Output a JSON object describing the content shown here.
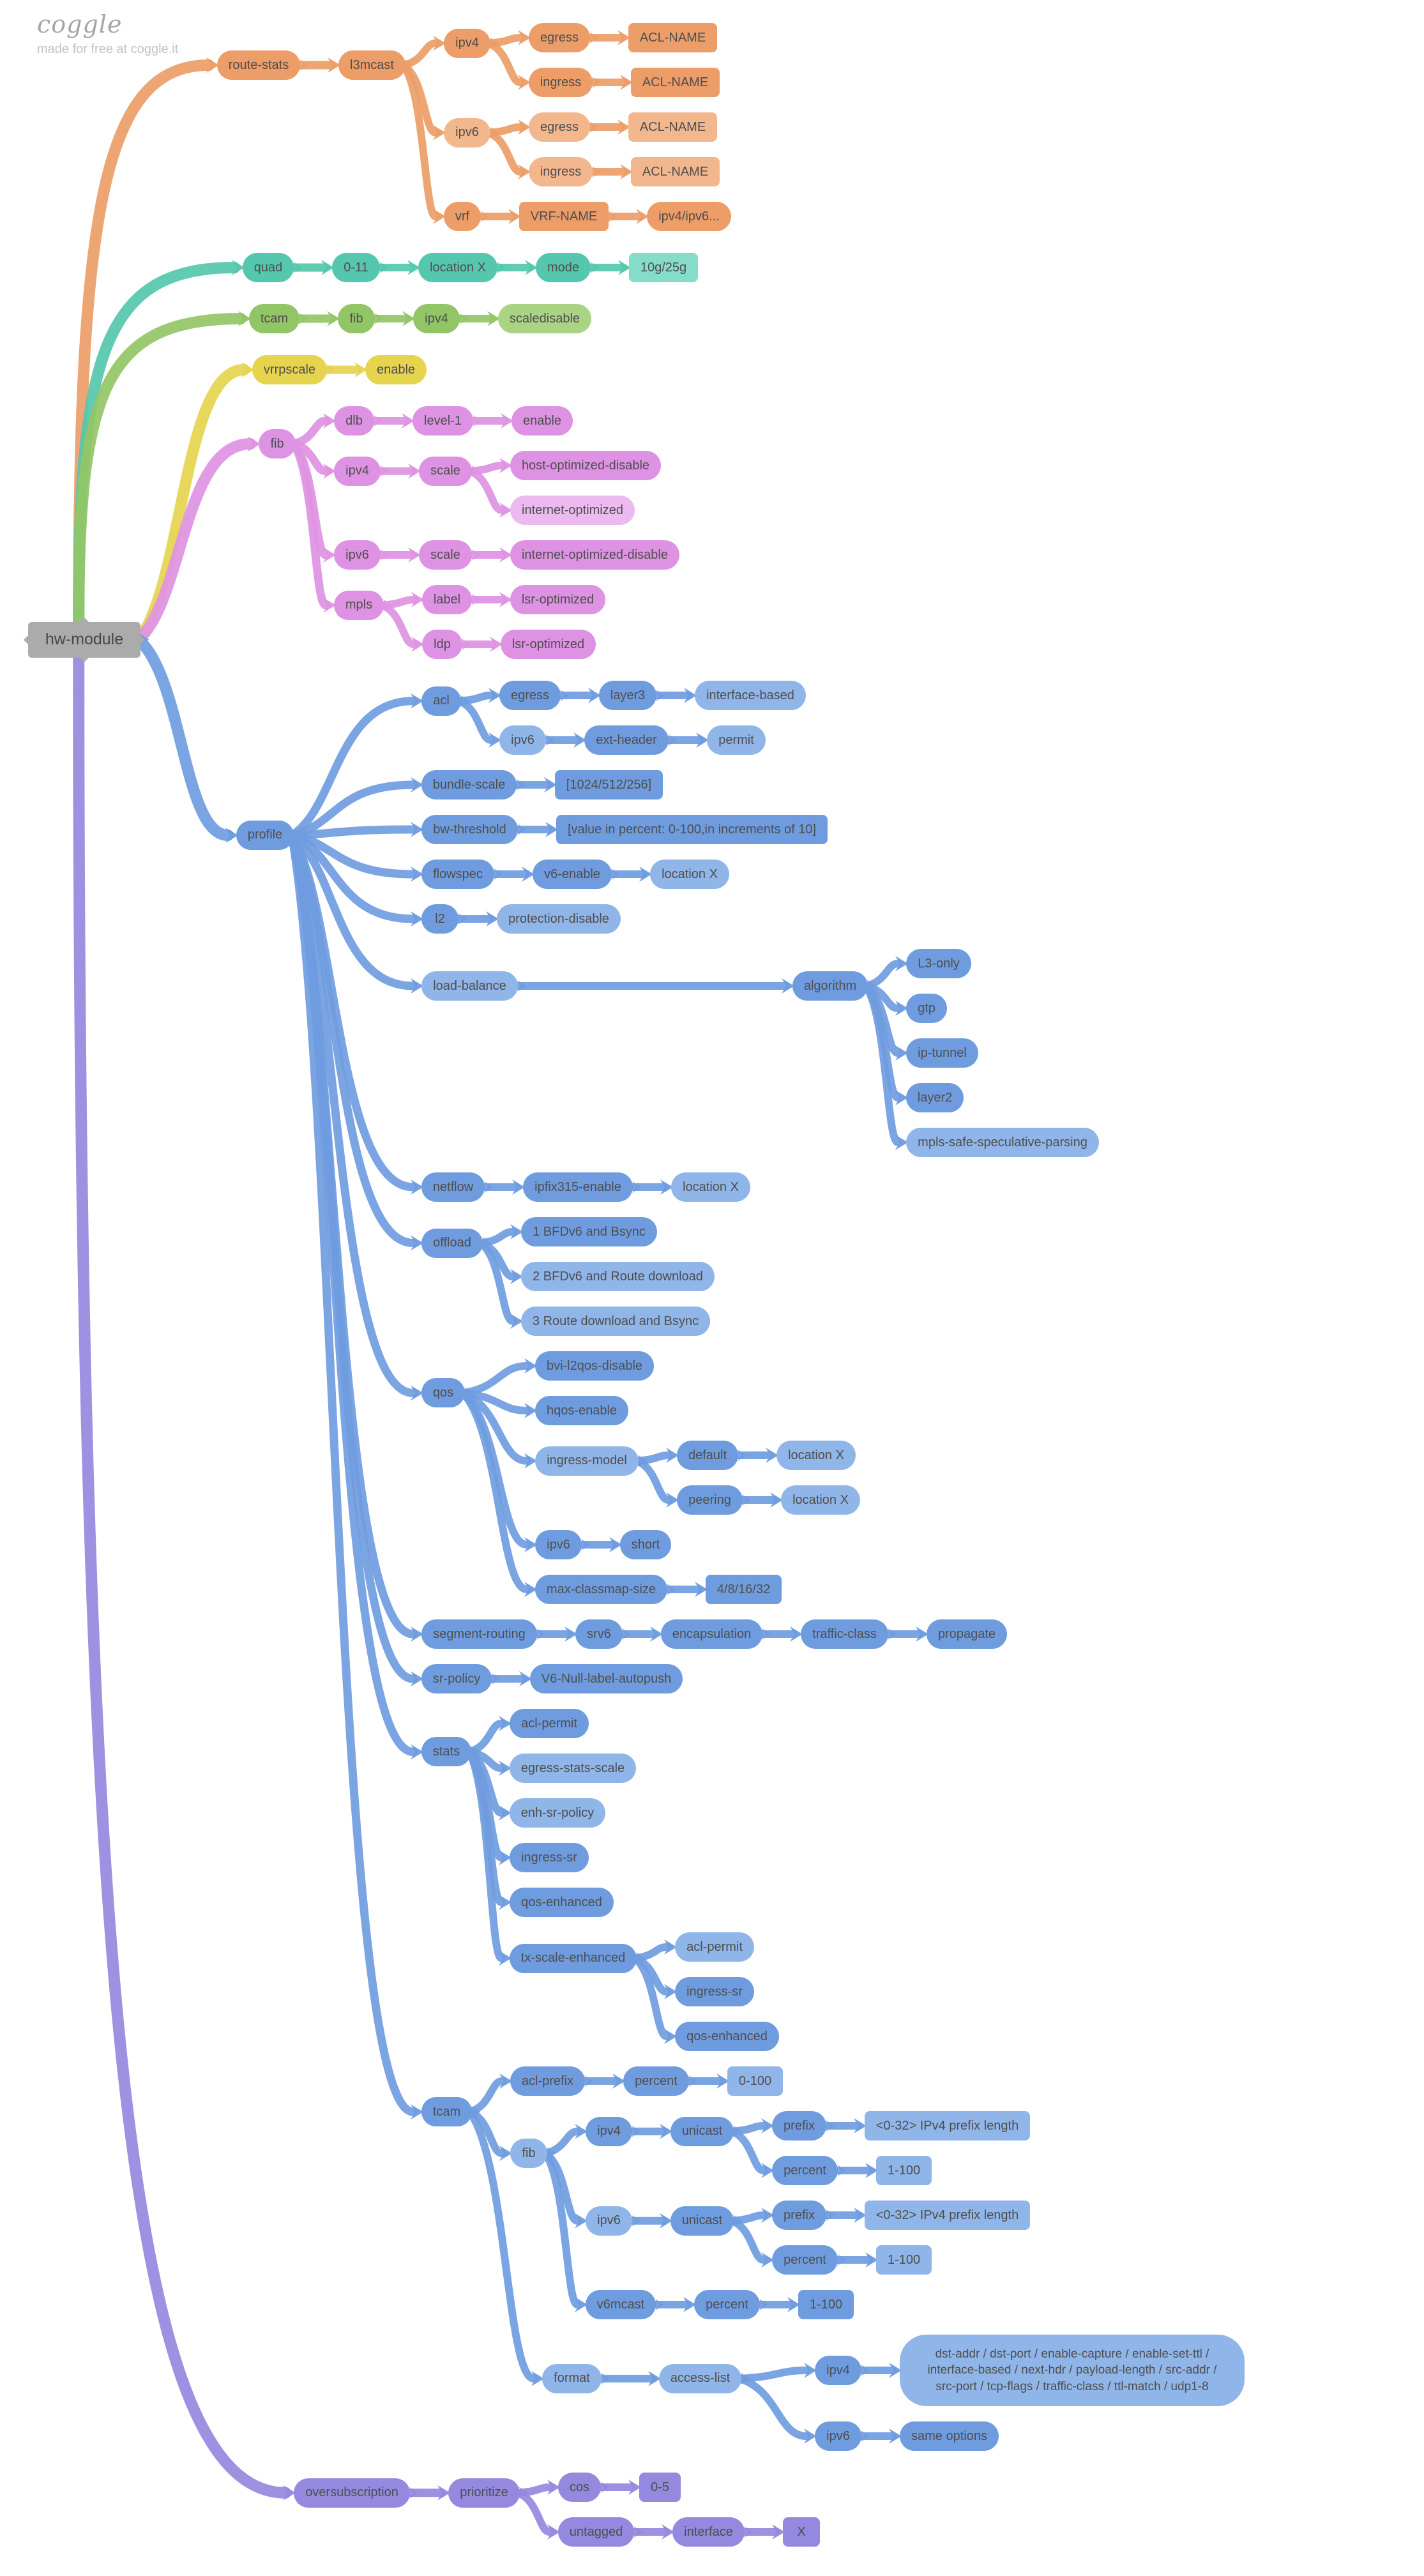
{
  "watermark": {
    "logo": "coggle",
    "tagline": "made for free at coggle.it"
  },
  "colors": {
    "gray": {
      "dark": "#ababab",
      "light": "#bdbdbd"
    },
    "orange": {
      "dark": "#ec9d68",
      "light": "#f3b78e"
    },
    "teal": {
      "dark": "#55c7ae",
      "light": "#85dcc8"
    },
    "green": {
      "dark": "#92c566",
      "light": "#aad484"
    },
    "yellow": {
      "dark": "#e6d44f",
      "light": "#eee183"
    },
    "violet": {
      "dark": "#de92e3",
      "light": "#ecb9f1"
    },
    "blue": {
      "dark": "#6f9cdf",
      "light": "#90b5e8"
    },
    "purple": {
      "dark": "#9489de",
      "light": "#aea6e9"
    }
  },
  "tree": {
    "label": "hw-module",
    "color": "gray",
    "children": [
      {
        "label": "route-stats",
        "color": "orange",
        "gap": 120,
        "children": [
          {
            "label": "l3mcast",
            "children": [
              {
                "label": "ipv4",
                "children": [
                  {
                    "label": "egress",
                    "children": [
                      {
                        "label": "ACL-NAME",
                        "shape": "rect"
                      }
                    ]
                  },
                  {
                    "label": "ingress",
                    "children": [
                      {
                        "label": "ACL-NAME",
                        "shape": "rect"
                      }
                    ]
                  }
                ]
              },
              {
                "label": "ipv6",
                "tone": 1,
                "children": [
                  {
                    "label": "egress",
                    "tone": 1,
                    "children": [
                      {
                        "label": "ACL-NAME",
                        "shape": "rect",
                        "tone": 1
                      }
                    ]
                  },
                  {
                    "label": "ingress",
                    "tone": 1,
                    "children": [
                      {
                        "label": "ACL-NAME",
                        "shape": "rect",
                        "tone": 1
                      }
                    ]
                  }
                ]
              },
              {
                "label": "vrf",
                "children": [
                  {
                    "label": "VRF-NAME",
                    "shape": "rect",
                    "children": [
                      {
                        "label": "ipv4/ipv6..."
                      }
                    ]
                  }
                ]
              }
            ]
          }
        ]
      },
      {
        "label": "quad",
        "color": "teal",
        "gap": 160,
        "children": [
          {
            "label": "0-11",
            "children": [
              {
                "label": "location X",
                "children": [
                  {
                    "label": "mode",
                    "children": [
                      {
                        "label": "10g/25g",
                        "shape": "rect",
                        "tone": 1
                      }
                    ]
                  }
                ]
              }
            ]
          }
        ]
      },
      {
        "label": "tcam",
        "color": "green",
        "gap": 170,
        "children": [
          {
            "label": "fib",
            "children": [
              {
                "label": "ipv4",
                "children": [
                  {
                    "label": "scaledisable",
                    "tone": 1
                  }
                ]
              }
            ]
          }
        ]
      },
      {
        "label": "vrrpscale",
        "color": "yellow",
        "gap": 175,
        "children": [
          {
            "label": "enable"
          }
        ]
      },
      {
        "label": "fib",
        "color": "violet",
        "gap": 185,
        "children": [
          {
            "label": "dlb",
            "children": [
              {
                "label": "level-1",
                "children": [
                  {
                    "label": "enable"
                  }
                ]
              }
            ]
          },
          {
            "label": "ipv4",
            "children": [
              {
                "label": "scale",
                "children": [
                  {
                    "label": "host-optimized-disable"
                  },
                  {
                    "label": "internet-optimized",
                    "tone": 1
                  }
                ]
              }
            ]
          },
          {
            "label": "ipv6",
            "children": [
              {
                "label": "scale",
                "children": [
                  {
                    "label": "internet-optimized-disable"
                  }
                ]
              }
            ]
          },
          {
            "label": "mpls",
            "children": [
              {
                "label": "label",
                "children": [
                  {
                    "label": "lsr-optimized"
                  }
                ]
              },
              {
                "label": "ldp",
                "children": [
                  {
                    "label": "lsr-optimized"
                  }
                ]
              }
            ]
          }
        ]
      },
      {
        "label": "profile",
        "color": "blue",
        "gap": 150,
        "children": [
          {
            "label": "acl",
            "gap": 200,
            "children": [
              {
                "label": "egress",
                "children": [
                  {
                    "label": "layer3",
                    "children": [
                      {
                        "label": "interface-based",
                        "tone": 1
                      }
                    ]
                  }
                ]
              },
              {
                "label": "ipv6",
                "tone": 1,
                "children": [
                  {
                    "label": "ext-header",
                    "children": [
                      {
                        "label": "permit",
                        "tone": 1
                      }
                    ]
                  }
                ]
              }
            ]
          },
          {
            "label": "bundle-scale",
            "gap": 200,
            "children": [
              {
                "label": "[1024/512/256]",
                "shape": "rect"
              }
            ]
          },
          {
            "label": "bw-threshold",
            "gap": 200,
            "children": [
              {
                "label": "[value in percent: 0-100,in increments of 10]",
                "shape": "rect"
              }
            ]
          },
          {
            "label": "flowspec",
            "gap": 200,
            "children": [
              {
                "label": "v6-enable",
                "children": [
                  {
                    "label": "location X",
                    "tone": 1
                  }
                ]
              }
            ]
          },
          {
            "label": "l2",
            "gap": 200,
            "children": [
              {
                "label": "protection-disable",
                "tone": 1
              }
            ]
          },
          {
            "label": "load-balance",
            "gap": 200,
            "tone": 1,
            "children": [
              {
                "label": "algorithm",
                "gap": 430,
                "children": [
                  {
                    "label": "L3-only"
                  },
                  {
                    "label": "gtp"
                  },
                  {
                    "label": "ip-tunnel"
                  },
                  {
                    "label": "layer2"
                  },
                  {
                    "label": "mpls-safe-speculative-parsing",
                    "tone": 1
                  }
                ]
              }
            ]
          },
          {
            "label": "netflow",
            "gap": 200,
            "children": [
              {
                "label": "ipfix315-enable",
                "children": [
                  {
                    "label": "location X",
                    "tone": 1
                  }
                ]
              }
            ]
          },
          {
            "label": "offload",
            "gap": 200,
            "children": [
              {
                "label": "1 BFDv6 and Bsync"
              },
              {
                "label": "2 BFDv6 and Route download",
                "tone": 1
              },
              {
                "label": "3 Route download and Bsync",
                "tone": 1
              }
            ]
          },
          {
            "label": "qos",
            "gap": 200,
            "children": [
              {
                "label": "bvi-l2qos-disable",
                "gap": 110
              },
              {
                "label": "hqos-enable",
                "gap": 110
              },
              {
                "label": "ingress-model",
                "gap": 110,
                "tone": 1,
                "children": [
                  {
                    "label": "default",
                    "children": [
                      {
                        "label": "location X",
                        "tone": 1
                      }
                    ]
                  },
                  {
                    "label": "peering",
                    "children": [
                      {
                        "label": "location X",
                        "tone": 1
                      }
                    ]
                  }
                ]
              },
              {
                "label": "ipv6",
                "gap": 110,
                "children": [
                  {
                    "label": "short"
                  }
                ]
              },
              {
                "label": "max-classmap-size",
                "gap": 110,
                "children": [
                  {
                    "label": "4/8/16/32",
                    "shape": "rect"
                  }
                ]
              }
            ]
          },
          {
            "label": "segment-routing",
            "gap": 200,
            "children": [
              {
                "label": "srv6",
                "children": [
                  {
                    "label": "encapsulation",
                    "children": [
                      {
                        "label": "traffic-class",
                        "children": [
                          {
                            "label": "propagate"
                          }
                        ]
                      }
                    ]
                  }
                ]
              }
            ]
          },
          {
            "label": "sr-policy",
            "gap": 200,
            "children": [
              {
                "label": "V6-Null-label-autopush"
              }
            ]
          },
          {
            "label": "stats",
            "gap": 200,
            "children": [
              {
                "label": "acl-permit"
              },
              {
                "label": "egress-stats-scale",
                "tone": 1
              },
              {
                "label": "enh-sr-policy",
                "tone": 1
              },
              {
                "label": "ingress-sr"
              },
              {
                "label": "qos-enhanced"
              },
              {
                "label": "tx-scale-enhanced",
                "children": [
                  {
                    "label": "acl-permit",
                    "tone": 1
                  },
                  {
                    "label": "ingress-sr"
                  },
                  {
                    "label": "qos-enhanced"
                  }
                ]
              }
            ]
          },
          {
            "label": "tcam",
            "gap": 200,
            "children": [
              {
                "label": "acl-prefix",
                "children": [
                  {
                    "label": "percent",
                    "children": [
                      {
                        "label": "0-100",
                        "shape": "rect",
                        "tone": 1
                      }
                    ]
                  }
                ]
              },
              {
                "label": "fib",
                "tone": 1,
                "children": [
                  {
                    "label": "ipv4",
                    "children": [
                      {
                        "label": "unicast",
                        "children": [
                          {
                            "label": "prefix",
                            "children": [
                              {
                                "label": "<0-32> IPv4 prefix length",
                                "shape": "rect",
                                "tone": 1
                              }
                            ]
                          },
                          {
                            "label": "percent",
                            "children": [
                              {
                                "label": "1-100",
                                "shape": "rect",
                                "tone": 1
                              }
                            ]
                          }
                        ]
                      }
                    ]
                  },
                  {
                    "label": "ipv6",
                    "tone": 1,
                    "children": [
                      {
                        "label": "unicast",
                        "children": [
                          {
                            "label": "prefix",
                            "children": [
                              {
                                "label": "<0-32> IPv4 prefix length",
                                "shape": "rect",
                                "tone": 1
                              }
                            ]
                          },
                          {
                            "label": "percent",
                            "children": [
                              {
                                "label": "1-100",
                                "shape": "rect",
                                "tone": 1
                              }
                            ]
                          }
                        ]
                      }
                    ]
                  },
                  {
                    "label": "v6mcast",
                    "children": [
                      {
                        "label": "percent",
                        "children": [
                          {
                            "label": "1-100",
                            "shape": "rect"
                          }
                        ]
                      }
                    ]
                  }
                ]
              },
              {
                "label": "format",
                "gap": 110,
                "tone": 1,
                "children": [
                  {
                    "label": "access-list",
                    "gap": 90,
                    "tone": 1,
                    "children": [
                      {
                        "label": "ipv4",
                        "gap": 115,
                        "children": [
                          {
                            "label": "dst-addr / dst-port / enable-capture / enable-set-ttl / interface-based / next-hdr / payload-length / src-addr / src-port / tcp-flags / traffic-class / ttl-match / udp1-8",
                            "shape": "big",
                            "tone": 1
                          }
                        ]
                      },
                      {
                        "label": "ipv6",
                        "gap": 115,
                        "children": [
                          {
                            "label": "same options"
                          }
                        ]
                      }
                    ]
                  }
                ]
              }
            ]
          }
        ]
      },
      {
        "label": "oversubscription",
        "color": "purple",
        "gap": 240,
        "children": [
          {
            "label": "prioritize",
            "children": [
              {
                "label": "cos",
                "children": [
                  {
                    "label": "0-5",
                    "shape": "rect"
                  }
                ]
              },
              {
                "label": "untagged",
                "children": [
                  {
                    "label": "interface",
                    "children": [
                      {
                        "label": "X",
                        "shape": "rect"
                      }
                    ]
                  }
                ]
              }
            ]
          }
        ]
      }
    ]
  }
}
